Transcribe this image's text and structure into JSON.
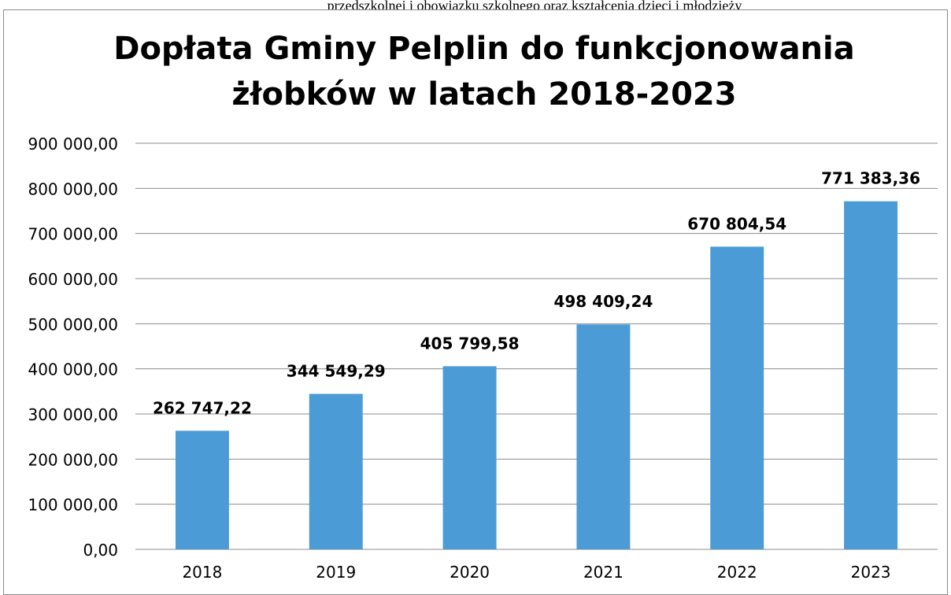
{
  "page": {
    "top_text": "przedszkolnej i obowiązku szkolnego oraz kształcenia dzieci i młodzieży"
  },
  "chart_data": {
    "type": "bar",
    "title": "Dopłata Gminy Pelplin do funkcjonowania żłobków w latach 2018-2023",
    "title_lines": [
      "Dopłata Gminy Pelplin do funkcjonowania",
      "żłobków w latach 2018-2023"
    ],
    "categories": [
      "2018",
      "2019",
      "2020",
      "2021",
      "2022",
      "2023"
    ],
    "values": [
      262747.22,
      344549.29,
      405799.58,
      498409.24,
      670804.54,
      771383.36
    ],
    "data_labels": [
      "262 747,22",
      "344 549,29",
      "405 799,58",
      "498 409,24",
      "670 804,54",
      "771 383,36"
    ],
    "y_ticks": [
      0,
      100000,
      200000,
      300000,
      400000,
      500000,
      600000,
      700000,
      800000,
      900000
    ],
    "y_tick_labels": [
      "0,00",
      "100 000,00",
      "200 000,00",
      "300 000,00",
      "400 000,00",
      "500 000,00",
      "600 000,00",
      "700 000,00",
      "800 000,00",
      "900 000,00"
    ],
    "xlabel": "",
    "ylabel": "",
    "ylim": [
      0,
      900000
    ],
    "grid": true,
    "legend": "none",
    "colors": {
      "bar": "#4a9bd6",
      "grid": "#8c8c8c",
      "text": "#000000"
    }
  }
}
